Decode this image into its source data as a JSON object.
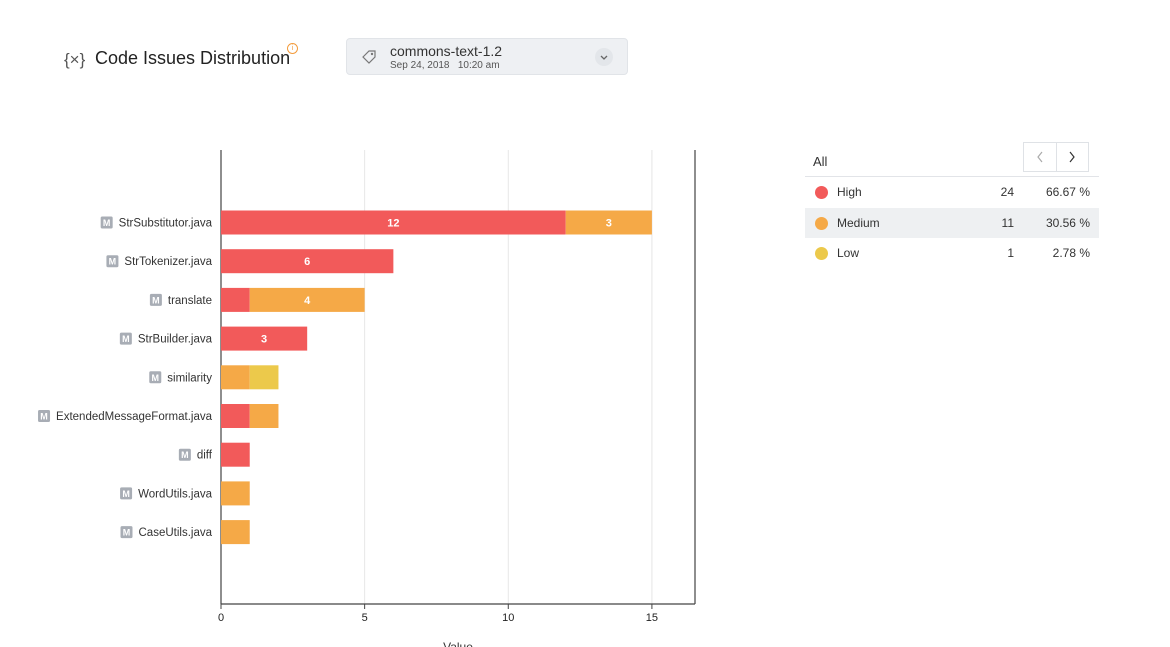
{
  "header": {
    "title": "Code Issues Distribution",
    "icon": "variable-icon"
  },
  "version_select": {
    "name": "commons-text-1.2",
    "date": "Sep 24, 2018",
    "time": "10:20 am"
  },
  "legend": {
    "all_label": "All",
    "items": [
      {
        "name": "High",
        "count": "24",
        "percent": "66.67 %",
        "color": "#f25a5a"
      },
      {
        "name": "Medium",
        "count": "11",
        "percent": "30.56 %",
        "color": "#f5a947"
      },
      {
        "name": "Low",
        "count": "1",
        "percent": "2.78 %",
        "color": "#ecc94b"
      }
    ]
  },
  "chart_data": {
    "type": "bar",
    "orientation": "horizontal",
    "stacked": true,
    "module_badge": "M",
    "categories": [
      "StrSubstitutor.java",
      "StrTokenizer.java",
      "translate",
      "StrBuilder.java",
      "similarity",
      "ExtendedMessageFormat.java",
      "diff",
      "WordUtils.java",
      "CaseUtils.java"
    ],
    "series": [
      {
        "name": "High",
        "color": "#f25a5a",
        "values": [
          12,
          6,
          1,
          3,
          0,
          1,
          1,
          0,
          0
        ]
      },
      {
        "name": "Medium",
        "color": "#f5a947",
        "values": [
          3,
          0,
          4,
          0,
          1,
          1,
          0,
          1,
          1
        ]
      },
      {
        "name": "Low",
        "color": "#ecc94b",
        "values": [
          0,
          0,
          0,
          0,
          1,
          0,
          0,
          0,
          0
        ]
      }
    ],
    "data_labels_min_value": 3,
    "xlabel": "Value",
    "xlim": [
      0,
      16.5
    ],
    "xticks": [
      0,
      5,
      10,
      15
    ],
    "grid": true
  }
}
